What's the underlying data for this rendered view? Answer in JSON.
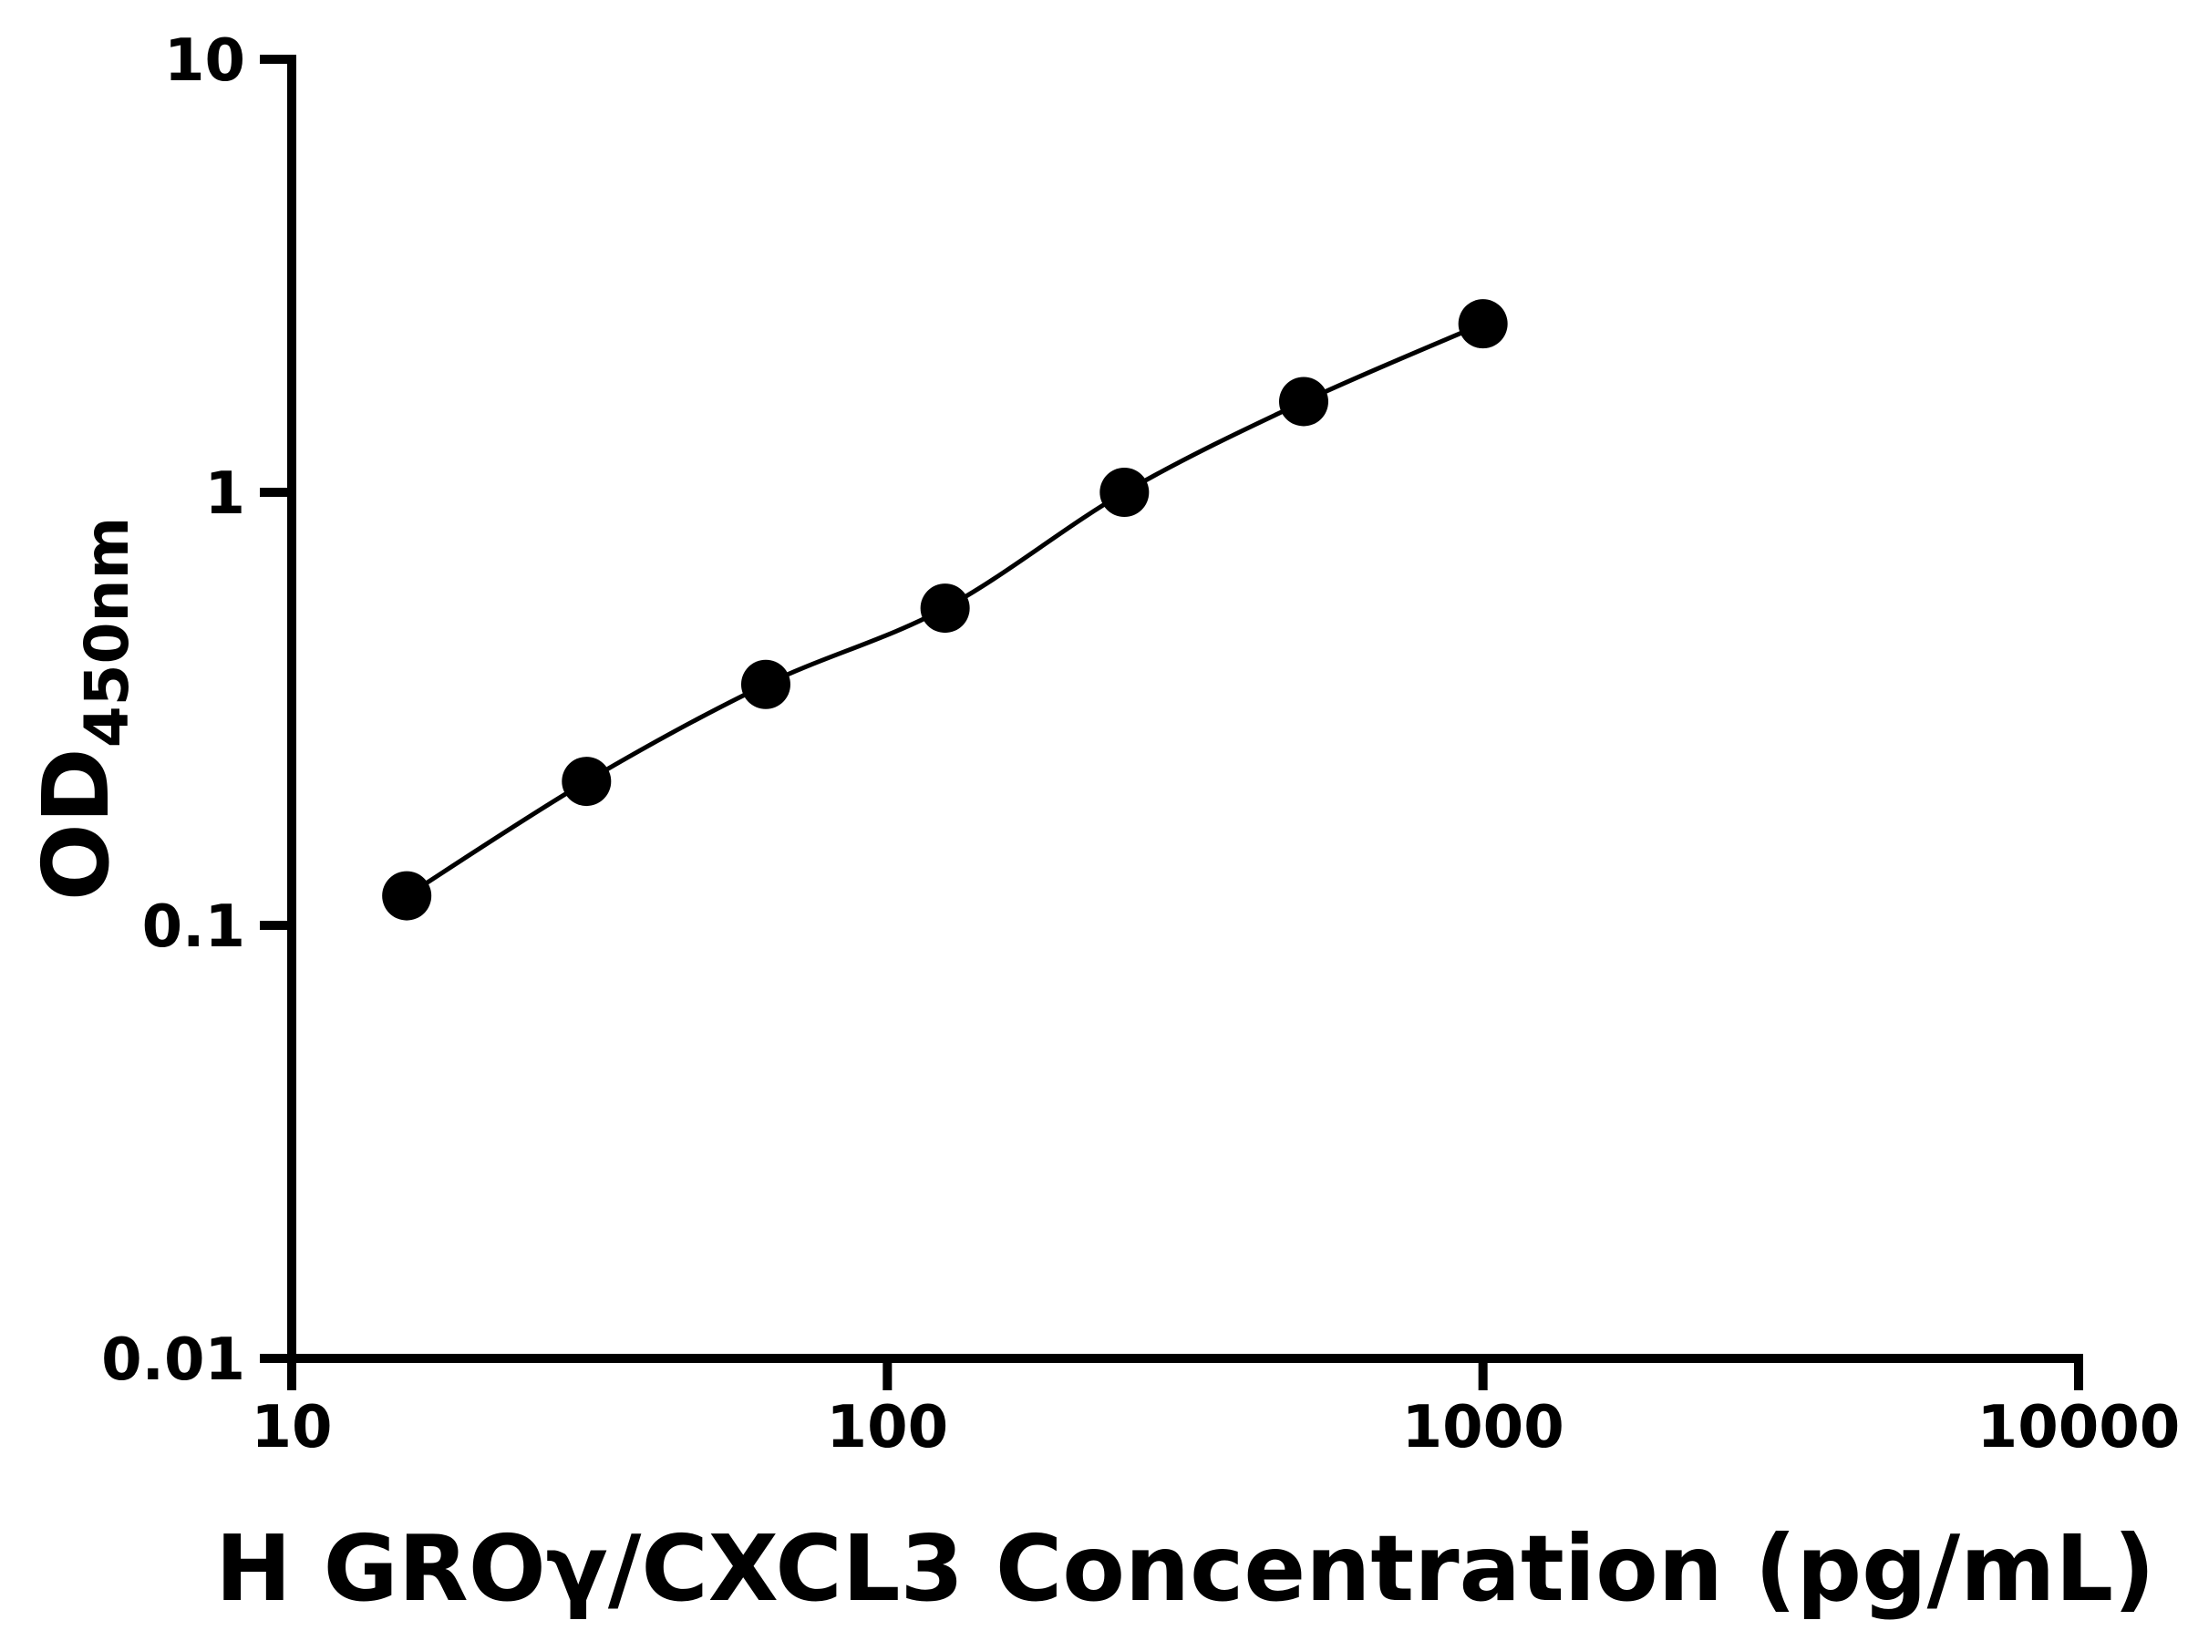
{
  "figure": {
    "background": "#ffffff"
  },
  "chart_data": {
    "type": "scatter",
    "title": "",
    "xlabel": "H GROγ/CXCL3 Concentration (pg/mL)",
    "ylabel_main": "OD",
    "ylabel_sub": "450nm",
    "x_scale": "log",
    "y_scale": "log",
    "xlim": [
      10,
      10000
    ],
    "ylim": [
      0.01,
      10
    ],
    "x_ticks": [
      10,
      100,
      1000,
      10000
    ],
    "x_tick_labels": [
      "10",
      "100",
      "1000",
      "10000"
    ],
    "y_ticks": [
      0.01,
      0.1,
      1,
      10
    ],
    "y_tick_labels": [
      "0.01",
      "0.1",
      "1",
      "10"
    ],
    "grid": false,
    "legend": "none",
    "points": [
      {
        "x": 15.6,
        "y": 0.117
      },
      {
        "x": 31.25,
        "y": 0.215
      },
      {
        "x": 62.5,
        "y": 0.36
      },
      {
        "x": 125,
        "y": 0.54
      },
      {
        "x": 250,
        "y": 1.0
      },
      {
        "x": 500,
        "y": 1.62
      },
      {
        "x": 1000,
        "y": 2.45
      }
    ],
    "marker_color": "#000000",
    "line_color": "#000000",
    "axis_color": "#000000"
  }
}
